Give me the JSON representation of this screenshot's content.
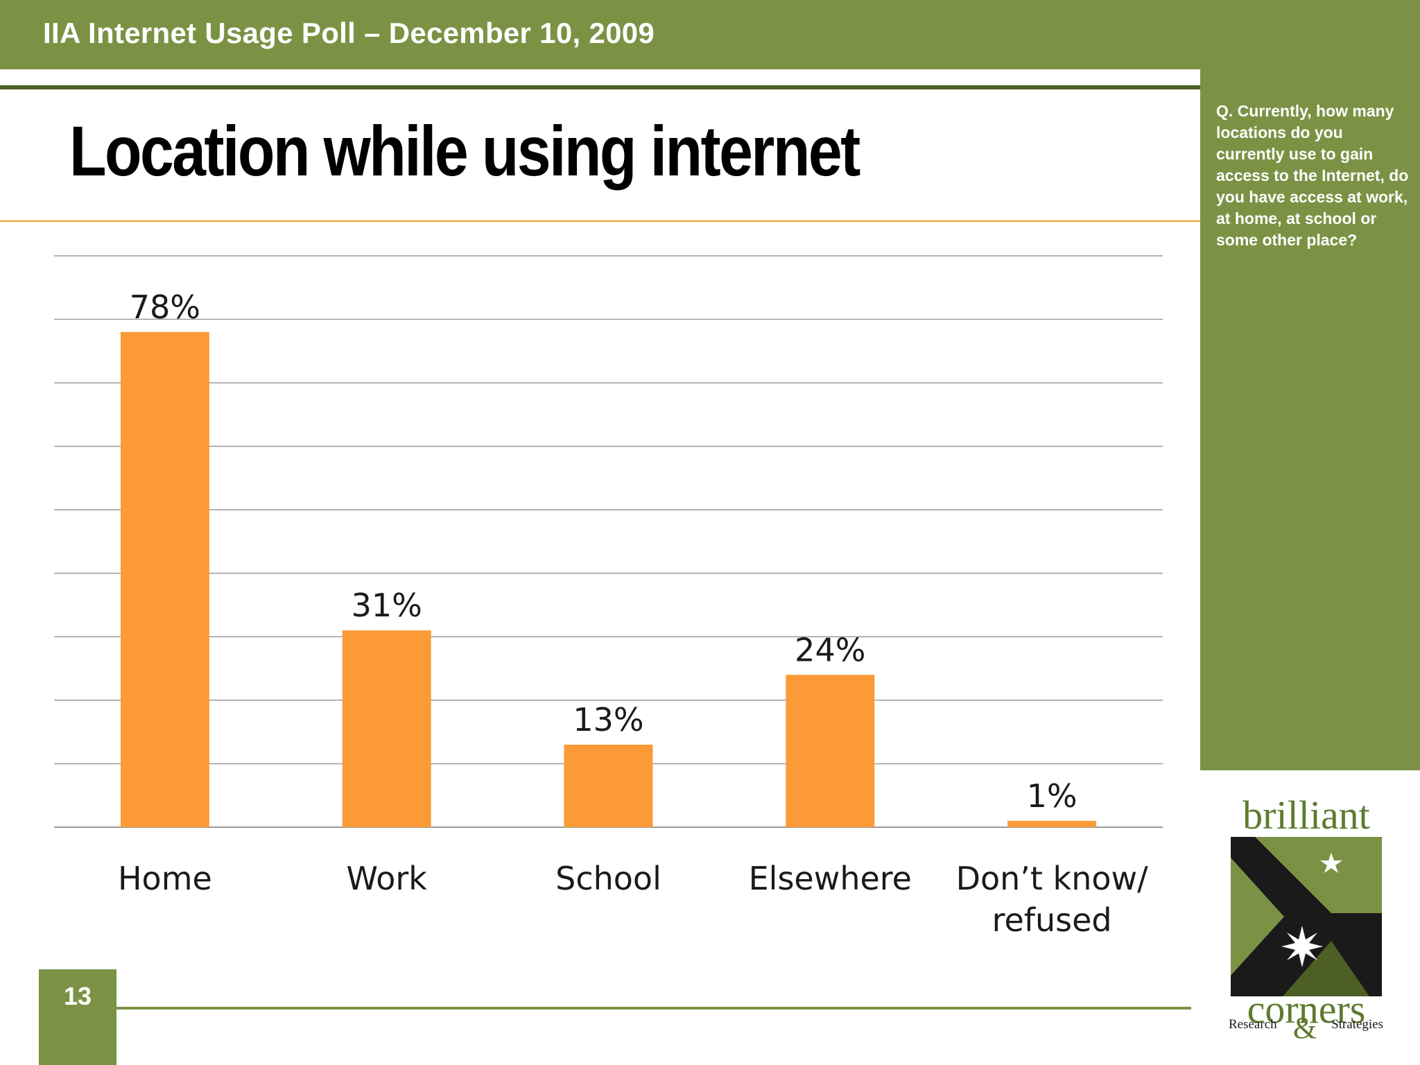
{
  "header": {
    "poll_title": "IIA Internet Usage Poll – December 10, 2009"
  },
  "slide": {
    "title": "Location while using internet",
    "page_number": "13"
  },
  "sidebar": {
    "question": "Q. Currently, how many locations do you currently use to gain access to the Internet, do you have access at work, at home, at school or some other place?"
  },
  "logo": {
    "word_top": "brilliant",
    "word_bottom": "corners",
    "tagline_left": "Research",
    "ampersand": "&",
    "tagline_right": "Strategies"
  },
  "colors": {
    "brand_green": "#7b9245",
    "dark_green": "#4d5f24",
    "bar_orange": "#fb9a36",
    "gridline": "#9a9a9a"
  },
  "chart_data": {
    "type": "bar",
    "categories": [
      "Home",
      "Work",
      "School",
      "Elsewhere",
      "Don’t know/ refused"
    ],
    "category_lines": [
      [
        "Home"
      ],
      [
        "Work"
      ],
      [
        "School"
      ],
      [
        "Elsewhere"
      ],
      [
        "Don’t know/",
        "refused"
      ]
    ],
    "values": [
      78,
      31,
      13,
      24,
      1
    ],
    "data_labels": [
      "78%",
      "31%",
      "13%",
      "24%",
      "1%"
    ],
    "ylim": [
      0,
      90
    ],
    "grid": true,
    "legend": "none",
    "title": "",
    "xlabel": "",
    "ylabel": ""
  }
}
